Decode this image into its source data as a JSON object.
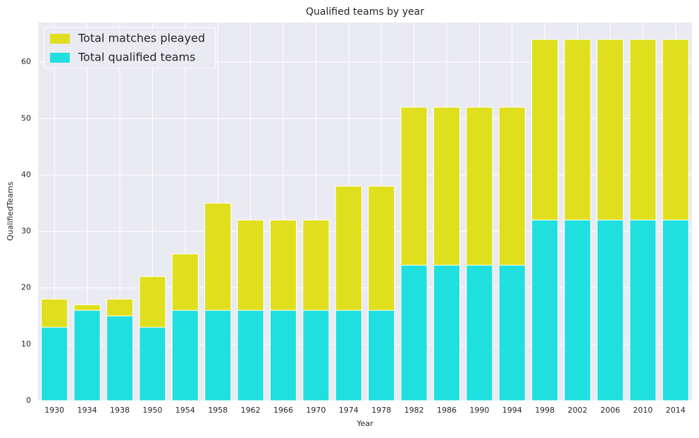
{
  "chart_data": {
    "type": "bar",
    "title": "Qualified teams by year",
    "x_label": "Year",
    "y_label": "QualifiedTeams",
    "categories": [
      "1930",
      "1934",
      "1938",
      "1950",
      "1954",
      "1958",
      "1962",
      "1966",
      "1970",
      "1974",
      "1978",
      "1982",
      "1986",
      "1990",
      "1994",
      "1998",
      "2002",
      "2006",
      "2010",
      "2014"
    ],
    "series": [
      {
        "name": "Total matches pleayed",
        "color": "#dfdf1d",
        "values": [
          18,
          17,
          18,
          22,
          26,
          35,
          32,
          32,
          32,
          38,
          38,
          52,
          52,
          52,
          52,
          64,
          64,
          64,
          64,
          64
        ]
      },
      {
        "name": "Total qualified teams",
        "color": "#1fdfdf",
        "values": [
          13,
          16,
          15,
          13,
          16,
          16,
          16,
          16,
          16,
          16,
          16,
          24,
          24,
          24,
          24,
          32,
          32,
          32,
          32,
          32
        ]
      }
    ],
    "ylim": [
      0,
      67
    ],
    "yticks": [
      0,
      10,
      20,
      30,
      40,
      50,
      60
    ],
    "grid": true,
    "legend": "upper-left"
  }
}
